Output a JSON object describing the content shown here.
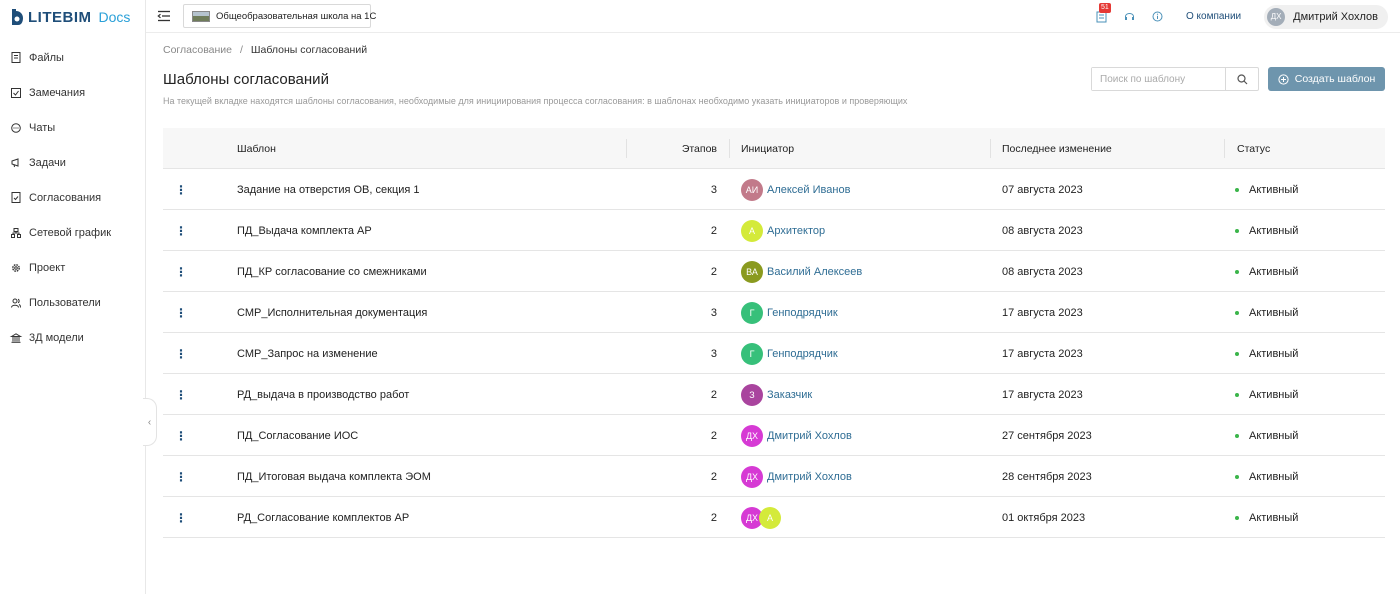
{
  "app": {
    "logo_text": "LITEBIM",
    "logo_sub": "Docs"
  },
  "sidebar": {
    "items": [
      {
        "label": "Файлы",
        "icon": "file-icon"
      },
      {
        "label": "Замечания",
        "icon": "checkbox-icon"
      },
      {
        "label": "Чаты",
        "icon": "chat-icon"
      },
      {
        "label": "Задачи",
        "icon": "flag-icon"
      },
      {
        "label": "Согласования",
        "icon": "approval-doc-icon"
      },
      {
        "label": "Сетевой график",
        "icon": "network-schedule-icon"
      },
      {
        "label": "Проект",
        "icon": "gear-icon"
      },
      {
        "label": "Пользователи",
        "icon": "users-icon"
      },
      {
        "label": "3Д модели",
        "icon": "building-icon"
      }
    ]
  },
  "header": {
    "project_name": "Общеобразовательная школа на 1С",
    "notifications_count": "51",
    "about_label": "О компании",
    "user_initials": "ДХ",
    "user_name": "Дмитрий Хохлов"
  },
  "breadcrumb": {
    "parent": "Согласование",
    "separator": "/",
    "current": "Шаблоны согласований"
  },
  "page": {
    "title": "Шаблоны согласований",
    "description": "На текущей вкладке находятся шаблоны согласования, необходимые для инициирования процесса согласования: в шаблонах необходимо указать инициаторов и проверяющих",
    "search_placeholder": "Поиск по шаблону",
    "create_label": "Создать шаблон"
  },
  "table": {
    "columns": {
      "name": "Шаблон",
      "stages": "Этапов",
      "initiator": "Инициатор",
      "modified": "Последнее изменение",
      "status": "Статус"
    },
    "rows": [
      {
        "name": "Задание на отверстия ОВ, секция 1",
        "stages": "3",
        "initiators": [
          {
            "initials": "АИ",
            "name": "Алексей Иванов",
            "color": "#c27a8a"
          }
        ],
        "modified": "07 августа 2023",
        "status": "Активный"
      },
      {
        "name": "ПД_Выдача комплекта АР",
        "stages": "2",
        "initiators": [
          {
            "initials": "А",
            "name": "Архитектор",
            "color": "#d4ea3a"
          }
        ],
        "modified": "08 августа 2023",
        "status": "Активный"
      },
      {
        "name": "ПД_КР согласование со смежниками",
        "stages": "2",
        "initiators": [
          {
            "initials": "ВА",
            "name": "Василий Алексеев",
            "color": "#8a9a1f"
          }
        ],
        "modified": "08 августа 2023",
        "status": "Активный"
      },
      {
        "name": "СМР_Исполнительная документация",
        "stages": "3",
        "initiators": [
          {
            "initials": "Г",
            "name": "Генподрядчик",
            "color": "#37c07a"
          }
        ],
        "modified": "17 августа 2023",
        "status": "Активный"
      },
      {
        "name": "СМР_Запрос на изменение",
        "stages": "3",
        "initiators": [
          {
            "initials": "Г",
            "name": "Генподрядчик",
            "color": "#37c07a"
          }
        ],
        "modified": "17 августа 2023",
        "status": "Активный"
      },
      {
        "name": "РД_выдача в производство работ",
        "stages": "2",
        "initiators": [
          {
            "initials": "З",
            "name": "Заказчик",
            "color": "#a9449e"
          }
        ],
        "modified": "17 августа 2023",
        "status": "Активный"
      },
      {
        "name": "ПД_Согласование ИОС",
        "stages": "2",
        "initiators": [
          {
            "initials": "ДХ",
            "name": "Дмитрий Хохлов",
            "color": "#d63ad4"
          }
        ],
        "modified": "27 сентября 2023",
        "status": "Активный"
      },
      {
        "name": "ПД_Итоговая выдача комплекта ЭОМ",
        "stages": "2",
        "initiators": [
          {
            "initials": "ДХ",
            "name": "Дмитрий Хохлов",
            "color": "#d63ad4"
          }
        ],
        "modified": "28 сентября 2023",
        "status": "Активный"
      },
      {
        "name": "РД_Согласование комплектов АР",
        "stages": "2",
        "initiators": [
          {
            "initials": "ДХ",
            "name": "",
            "color": "#d63ad4"
          },
          {
            "initials": "А",
            "name": "",
            "color": "#d4ea3a"
          }
        ],
        "modified": "01 октября 2023",
        "status": "Активный"
      }
    ]
  },
  "colors": {
    "accent": "#6e95ad",
    "brand": "#1f4e79",
    "status_active": "#3bb54a",
    "link": "#2f6d94"
  }
}
